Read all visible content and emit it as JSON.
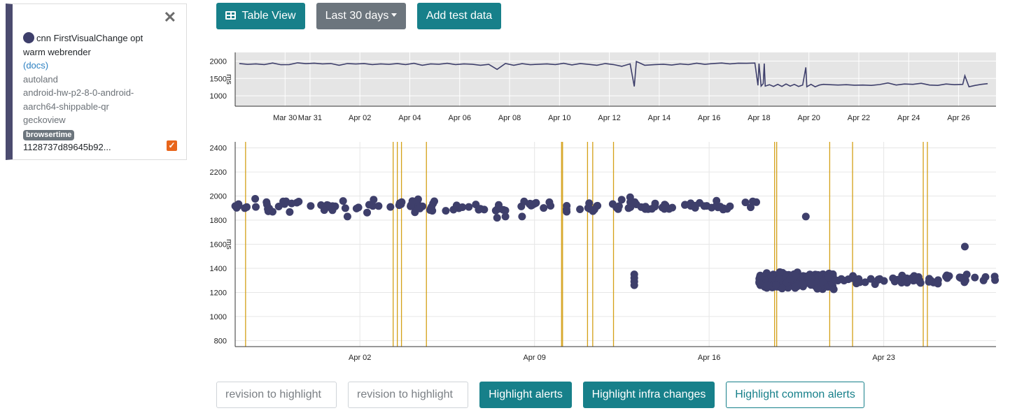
{
  "toolbar": {
    "table_view_label": "Table View",
    "range_label": "Last 30 days",
    "add_test_data_label": "Add test data"
  },
  "legend": {
    "series_line1": "cnn FirstVisualChange opt",
    "series_line2": "warm webrender",
    "docs_label": "(docs)",
    "repo": "autoland",
    "platform_line1": "android-hw-p2-8-0-android-",
    "platform_line2": "aarch64-shippable-qr",
    "application": "geckoview",
    "framework_badge": "browsertime",
    "revision": "1128737d89645b92...",
    "close_symbol": "✕",
    "check_symbol": "✓",
    "series_color": "#3e3f6b"
  },
  "bottom_controls": {
    "revision_placeholder_1": "revision to highlight",
    "revision_placeholder_2": "revision to highlight",
    "highlight_alerts_label": "Highlight alerts",
    "highlight_infra_label": "Highlight infra changes",
    "highlight_common_label": "Highlight common alerts"
  },
  "chart_data": [
    {
      "type": "line",
      "name": "overview",
      "xlabel": "",
      "ylabel": "ms",
      "ylim": [
        700,
        2250
      ],
      "xlim": [
        "2024-03-28",
        "2024-04-27T12"
      ],
      "x_tick_labels": [
        "Mar 30",
        "Mar 31",
        "Apr 02",
        "Apr 04",
        "Apr 06",
        "Apr 08",
        "Apr 10",
        "Apr 12",
        "Apr 14",
        "Apr 16",
        "Apr 18",
        "Apr 20",
        "Apr 22",
        "Apr 24",
        "Apr 26"
      ],
      "y_tick_labels": [
        1000,
        1500,
        2000
      ],
      "grid": true,
      "background": "#e5e5e5",
      "line_color": "#3e3f6b",
      "points": [
        [
          "2024-03-28T04",
          1930
        ],
        [
          "2024-03-28T12",
          1905
        ],
        [
          "2024-03-28T20",
          1920
        ],
        [
          "2024-03-29T04",
          1900
        ],
        [
          "2024-03-29T12",
          1945
        ],
        [
          "2024-03-29T20",
          1895
        ],
        [
          "2024-03-30T04",
          1900
        ],
        [
          "2024-03-30T12",
          1950
        ],
        [
          "2024-03-30T20",
          1925
        ],
        [
          "2024-03-31T04",
          1940
        ],
        [
          "2024-03-31T12",
          1920
        ],
        [
          "2024-03-31T20",
          1930
        ],
        [
          "2024-04-01T04",
          1880
        ],
        [
          "2024-04-01T12",
          1930
        ],
        [
          "2024-04-01T20",
          1915
        ],
        [
          "2024-04-02T04",
          1930
        ],
        [
          "2024-04-02T12",
          1900
        ],
        [
          "2024-04-02T20",
          1920
        ],
        [
          "2024-04-03T04",
          1905
        ],
        [
          "2024-04-03T12",
          1930
        ],
        [
          "2024-04-03T20",
          1900
        ],
        [
          "2024-04-04T04",
          1935
        ],
        [
          "2024-04-04T12",
          1880
        ],
        [
          "2024-04-04T20",
          1920
        ],
        [
          "2024-04-05T04",
          1910
        ],
        [
          "2024-04-05T12",
          1935
        ],
        [
          "2024-04-05T20",
          1900
        ],
        [
          "2024-04-06T04",
          1920
        ],
        [
          "2024-04-06T12",
          1910
        ],
        [
          "2024-04-06T20",
          1880
        ],
        [
          "2024-04-07T04",
          1905
        ],
        [
          "2024-04-07T12",
          1760
        ],
        [
          "2024-04-07T20",
          1930
        ],
        [
          "2024-04-08T04",
          1880
        ],
        [
          "2024-04-08T12",
          1925
        ],
        [
          "2024-04-08T20",
          1895
        ],
        [
          "2024-04-09T04",
          1910
        ],
        [
          "2024-04-09T12",
          1920
        ],
        [
          "2024-04-09T20",
          1900
        ],
        [
          "2024-04-10T04",
          1935
        ],
        [
          "2024-04-10T12",
          1890
        ],
        [
          "2024-04-10T20",
          1930
        ],
        [
          "2024-04-11T04",
          1905
        ],
        [
          "2024-04-11T12",
          1880
        ],
        [
          "2024-04-11T20",
          1930
        ],
        [
          "2024-04-12T04",
          1900
        ],
        [
          "2024-04-12T12",
          1850
        ],
        [
          "2024-04-12T20",
          1920
        ],
        [
          "2024-04-13T00",
          1270
        ],
        [
          "2024-04-13T02",
          1990
        ],
        [
          "2024-04-13T10",
          1880
        ],
        [
          "2024-04-13T20",
          1900
        ],
        [
          "2024-04-14T04",
          1910
        ],
        [
          "2024-04-14T12",
          1885
        ],
        [
          "2024-04-14T20",
          1920
        ],
        [
          "2024-04-15T04",
          1900
        ],
        [
          "2024-04-15T12",
          1940
        ],
        [
          "2024-04-15T20",
          1905
        ],
        [
          "2024-04-16T04",
          1930
        ],
        [
          "2024-04-16T12",
          1945
        ],
        [
          "2024-04-16T20",
          1920
        ],
        [
          "2024-04-17T04",
          1940
        ],
        [
          "2024-04-17T12",
          1935
        ],
        [
          "2024-04-17T20",
          1945
        ],
        [
          "2024-04-17T23",
          1300
        ],
        [
          "2024-04-18T00",
          1930
        ],
        [
          "2024-04-18T02",
          1280
        ],
        [
          "2024-04-18T04",
          1350
        ],
        [
          "2024-04-18T05",
          1930
        ],
        [
          "2024-04-18T06",
          1280
        ],
        [
          "2024-04-18T10",
          1320
        ],
        [
          "2024-04-18T14",
          1270
        ],
        [
          "2024-04-18T18",
          1330
        ],
        [
          "2024-04-18T22",
          1270
        ],
        [
          "2024-04-19T02",
          1340
        ],
        [
          "2024-04-19T06",
          1280
        ],
        [
          "2024-04-19T10",
          1330
        ],
        [
          "2024-04-19T14",
          1270
        ],
        [
          "2024-04-19T18",
          1310
        ],
        [
          "2024-04-19T21",
          1820
        ],
        [
          "2024-04-19T22",
          1260
        ],
        [
          "2024-04-20T02",
          1330
        ],
        [
          "2024-04-20T06",
          1260
        ],
        [
          "2024-04-20T10",
          1310
        ],
        [
          "2024-04-20T14",
          1330
        ],
        [
          "2024-04-20T20",
          1320
        ],
        [
          "2024-04-21T04",
          1310
        ],
        [
          "2024-04-21T12",
          1320
        ],
        [
          "2024-04-21T20",
          1305
        ],
        [
          "2024-04-22T04",
          1310
        ],
        [
          "2024-04-22T12",
          1300
        ],
        [
          "2024-04-22T20",
          1325
        ],
        [
          "2024-04-23T04",
          1370
        ],
        [
          "2024-04-23T12",
          1310
        ],
        [
          "2024-04-23T20",
          1340
        ],
        [
          "2024-04-24T04",
          1330
        ],
        [
          "2024-04-24T12",
          1360
        ],
        [
          "2024-04-24T20",
          1310
        ],
        [
          "2024-04-25T04",
          1300
        ],
        [
          "2024-04-25T12",
          1340
        ],
        [
          "2024-04-25T20",
          1320
        ],
        [
          "2024-04-26T04",
          1330
        ],
        [
          "2024-04-26T06",
          1580
        ],
        [
          "2024-04-26T10",
          1260
        ],
        [
          "2024-04-26T16",
          1300
        ],
        [
          "2024-04-26T22",
          1330
        ],
        [
          "2024-04-27T04",
          1350
        ]
      ]
    },
    {
      "type": "scatter",
      "name": "detail",
      "xlabel": "",
      "ylabel": "ms",
      "ylim": [
        750,
        2450
      ],
      "xlim": [
        "2024-03-28",
        "2024-04-27T12"
      ],
      "x_tick_labels": [
        "Apr 02",
        "Apr 09",
        "Apr 16",
        "Apr 23"
      ],
      "y_tick_labels": [
        800,
        1000,
        1200,
        1400,
        1600,
        1800,
        2000,
        2200,
        2400
      ],
      "grid": true,
      "point_color": "#3e3f6b",
      "alert_line_color": "#d4a017",
      "alert_lines": [
        "2024-03-28T10",
        "2024-04-03T08",
        "2024-04-03T12",
        "2024-04-03T16",
        "2024-04-04T16",
        "2024-04-10T02",
        "2024-04-10T03",
        "2024-04-11T03",
        "2024-04-11T08",
        "2024-04-12T04",
        "2024-04-18T15",
        "2024-04-18T17",
        "2024-04-20T20",
        "2024-04-21T18",
        "2024-04-24T14",
        "2024-04-24T18"
      ],
      "clusters": [
        {
          "from": "2024-03-28",
          "to": "2024-04-13",
          "count": 110,
          "mean": 1920,
          "spread": 45,
          "outliers": [
            [
              "2024-03-29T12",
              1870
            ],
            [
              "2024-04-01T12",
              1830
            ],
            [
              "2024-04-07T12",
              1820
            ],
            [
              "2024-04-07T20",
              1830
            ],
            [
              "2024-04-08T12",
              1830
            ],
            [
              "2024-04-12T20",
              1990
            ],
            [
              "2024-04-13T00",
              1350
            ],
            [
              "2024-04-13T00",
              1320
            ],
            [
              "2024-04-13T00",
              1290
            ],
            [
              "2024-04-13T00",
              1260
            ],
            [
              "2024-04-19T21",
              1830
            ],
            [
              "2024-04-26T06",
              1580
            ]
          ]
        },
        {
          "from": "2024-04-13",
          "to": "2024-04-17T22",
          "count": 40,
          "mean": 1920,
          "spread": 35
        },
        {
          "from": "2024-04-18",
          "to": "2024-04-21",
          "count": 260,
          "mean": 1300,
          "spread": 55
        },
        {
          "from": "2024-04-21",
          "to": "2024-04-27T12",
          "count": 60,
          "mean": 1310,
          "spread": 35
        }
      ]
    }
  ]
}
